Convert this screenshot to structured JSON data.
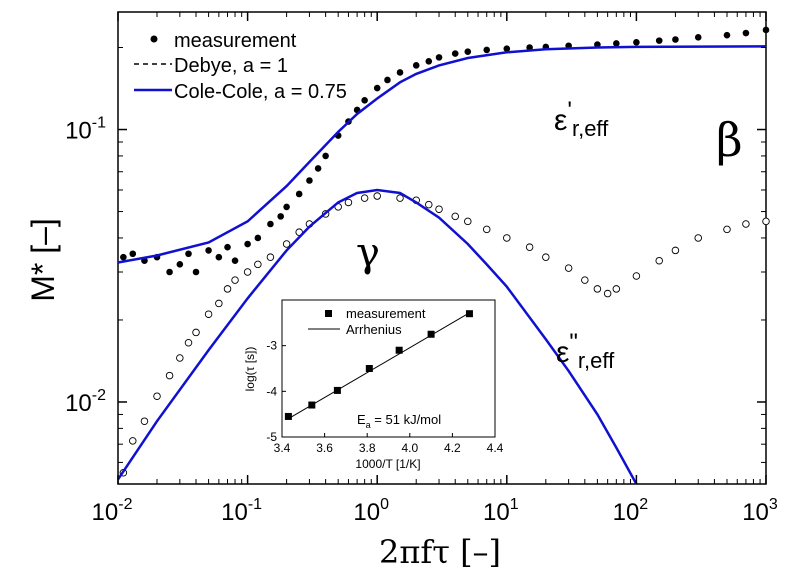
{
  "chart_data": [
    {
      "type": "scatter",
      "xlabel": "2πfτ [–]",
      "ylabel": "M* [–]",
      "xscale": "log",
      "yscale": "log",
      "xlim": [
        0.01,
        1000
      ],
      "ylim": [
        0.005,
        0.27
      ],
      "x_ticks": [
        {
          "value": 0.01,
          "base": "10",
          "exp": "-2"
        },
        {
          "value": 0.1,
          "base": "10",
          "exp": "-1"
        },
        {
          "value": 1,
          "base": "10",
          "exp": "0"
        },
        {
          "value": 10,
          "base": "10",
          "exp": "1"
        },
        {
          "value": 100,
          "base": "10",
          "exp": "2"
        },
        {
          "value": 1000,
          "base": "10",
          "exp": "3"
        }
      ],
      "y_ticks": [
        {
          "value": 0.01,
          "base": "10",
          "exp": "-2"
        },
        {
          "value": 0.1,
          "base": "10",
          "exp": "-1"
        }
      ],
      "legend": {
        "placement": "top-left",
        "entries": [
          "measurement",
          "Debye, a = 1",
          "Cole-Cole, a = 0.75"
        ]
      },
      "annotations": {
        "eps_real": {
          "main": "ε",
          "prime": "'",
          "sub": "r,eff"
        },
        "eps_imag": {
          "main": "ε",
          "prime": "\"",
          "sub": "r,eff"
        },
        "beta": "β",
        "gamma": "γ"
      },
      "series": [
        {
          "name": "measurement",
          "marker": "filled-circle",
          "component": "real",
          "x": [
            0.011,
            0.013,
            0.016,
            0.02,
            0.025,
            0.03,
            0.035,
            0.04,
            0.05,
            0.06,
            0.07,
            0.08,
            0.1,
            0.12,
            0.15,
            0.18,
            0.2,
            0.25,
            0.3,
            0.35,
            0.4,
            0.5,
            0.6,
            0.7,
            0.8,
            1.0,
            1.2,
            1.5,
            2.0,
            2.5,
            3.0,
            4.0,
            5.0,
            7.0,
            10,
            15,
            20,
            30,
            50,
            70,
            100,
            150,
            200,
            300,
            500,
            700,
            1000
          ],
          "y": [
            0.034,
            0.035,
            0.033,
            0.034,
            0.03,
            0.032,
            0.035,
            0.03,
            0.036,
            0.034,
            0.037,
            0.033,
            0.038,
            0.04,
            0.045,
            0.048,
            0.052,
            0.058,
            0.065,
            0.072,
            0.08,
            0.095,
            0.107,
            0.118,
            0.128,
            0.142,
            0.152,
            0.162,
            0.172,
            0.178,
            0.184,
            0.19,
            0.193,
            0.196,
            0.198,
            0.2,
            0.201,
            0.203,
            0.205,
            0.207,
            0.209,
            0.212,
            0.214,
            0.218,
            0.222,
            0.226,
            0.232
          ]
        },
        {
          "name": "measurement",
          "marker": "open-circle",
          "component": "imaginary",
          "x": [
            0.011,
            0.013,
            0.016,
            0.02,
            0.025,
            0.03,
            0.035,
            0.04,
            0.05,
            0.06,
            0.07,
            0.08,
            0.1,
            0.12,
            0.15,
            0.2,
            0.25,
            0.3,
            0.4,
            0.5,
            0.6,
            0.8,
            1.0,
            1.5,
            2.0,
            2.5,
            3.0,
            4.0,
            5.0,
            7.0,
            10,
            15,
            20,
            30,
            40,
            50,
            60,
            70,
            100,
            150,
            200,
            300,
            500,
            700,
            1000
          ],
          "y": [
            0.0055,
            0.0072,
            0.0085,
            0.0105,
            0.0125,
            0.0145,
            0.0165,
            0.018,
            0.021,
            0.023,
            0.026,
            0.028,
            0.03,
            0.032,
            0.034,
            0.038,
            0.042,
            0.045,
            0.049,
            0.052,
            0.054,
            0.056,
            0.057,
            0.056,
            0.055,
            0.053,
            0.051,
            0.048,
            0.046,
            0.043,
            0.04,
            0.037,
            0.034,
            0.031,
            0.028,
            0.026,
            0.025,
            0.026,
            0.029,
            0.033,
            0.036,
            0.04,
            0.043,
            0.045,
            0.046
          ]
        },
        {
          "name": "Cole-Cole, a = 0.75",
          "component": "real",
          "line": "solid",
          "x": [
            0.01,
            0.02,
            0.05,
            0.1,
            0.2,
            0.3,
            0.5,
            0.7,
            1,
            1.5,
            2,
            3,
            5,
            10,
            20,
            50,
            100,
            1000
          ],
          "y": [
            0.0325,
            0.0345,
            0.0385,
            0.046,
            0.062,
            0.076,
            0.098,
            0.114,
            0.13,
            0.149,
            0.16,
            0.172,
            0.183,
            0.192,
            0.197,
            0.2,
            0.201,
            0.202
          ]
        },
        {
          "name": "Cole-Cole, a = 0.75",
          "component": "imaginary",
          "line": "solid",
          "x": [
            0.01,
            0.02,
            0.05,
            0.1,
            0.2,
            0.3,
            0.5,
            0.7,
            1,
            1.5,
            2,
            3,
            5,
            7,
            10,
            20,
            30,
            50,
            70,
            100
          ],
          "y": [
            0.0052,
            0.0085,
            0.0155,
            0.024,
            0.036,
            0.044,
            0.054,
            0.0585,
            0.06,
            0.0585,
            0.054,
            0.0475,
            0.038,
            0.032,
            0.0265,
            0.017,
            0.013,
            0.009,
            0.0068,
            0.005
          ]
        }
      ]
    },
    {
      "type": "scatter",
      "inset": true,
      "xlabel": "1000/T [1/K]",
      "ylabel": "log(τ [s])",
      "xlim": [
        3.4,
        4.4
      ],
      "ylim": [
        -5,
        -2
      ],
      "x_ticks": [
        "3.4",
        "3.6",
        "3.8",
        "4.0",
        "4.2",
        "4.4"
      ],
      "y_ticks": [
        "-5",
        "-4",
        "-3"
      ],
      "legend_entries": [
        "measurement",
        "Arrhenius"
      ],
      "annotation": {
        "main": "E",
        "sub": "a",
        "rest": " = 51 kJ/mol"
      },
      "series": [
        {
          "name": "measurement",
          "marker": "filled-square",
          "x": [
            3.43,
            3.54,
            3.66,
            3.81,
            3.95,
            4.1,
            4.28
          ],
          "y": [
            -4.55,
            -4.3,
            -3.98,
            -3.5,
            -3.1,
            -2.75,
            -2.3
          ]
        },
        {
          "name": "Arrhenius",
          "line": "solid",
          "x": [
            3.43,
            4.28
          ],
          "y": [
            -4.6,
            -2.28
          ]
        }
      ]
    }
  ]
}
